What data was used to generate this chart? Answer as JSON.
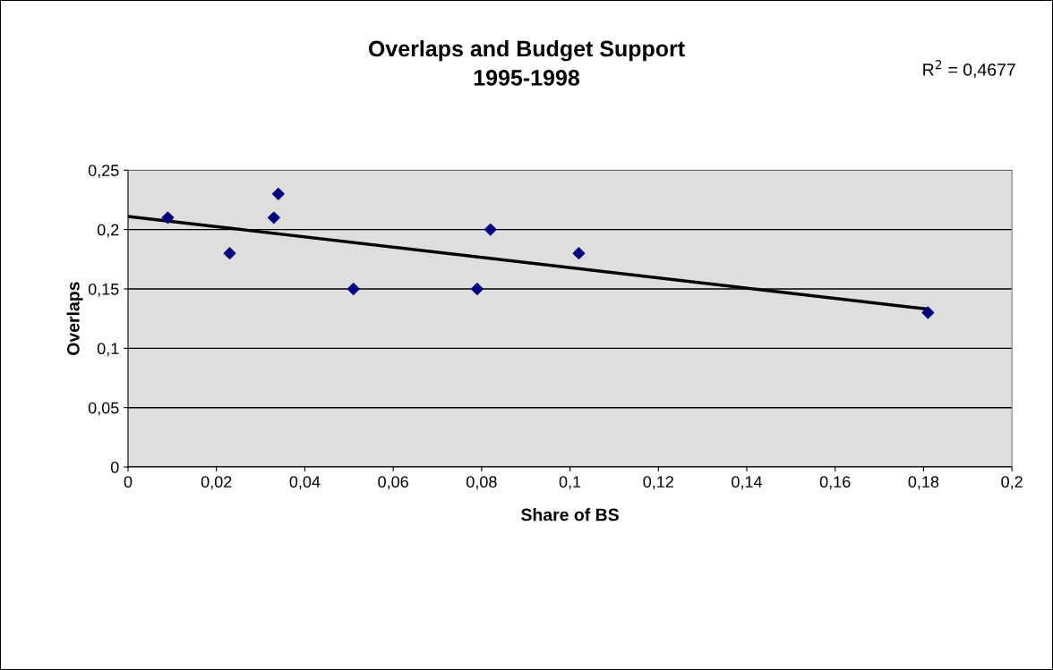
{
  "chart_data": {
    "type": "scatter",
    "title": "Overlaps and Budget Support\n1995-1998",
    "xlabel": "Share of BS",
    "ylabel": "Overlaps",
    "annotations": [
      "R$^{2}$ = 0,4677"
    ],
    "series": [
      {
        "color": "#000080",
        "marker": "diamond",
        "x": [
          0.009,
          0.023,
          0.033,
          0.034,
          0.051,
          0.079,
          0.082,
          0.102,
          0.181
        ],
        "values": [
          0.21,
          0.18,
          0.21,
          0.23,
          0.15,
          0.15,
          0.2,
          0.18,
          0.13
        ]
      },
      {
        "type": "line",
        "color": "#000000",
        "marker": "none",
        "line_style": "solid",
        "x": [
          0,
          0.181
        ],
        "values": [
          0.211,
          0.133
        ]
      }
    ],
    "xlim": [
      0,
      0.2
    ],
    "ylim": [
      0,
      0.25
    ],
    "xticks": [
      0,
      {
        "value": 0.02,
        "label": "0,02"
      },
      {
        "value": 0.04,
        "label": "0,04"
      },
      {
        "value": 0.06,
        "label": "0,06"
      },
      {
        "value": 0.08,
        "label": "0,08"
      },
      {
        "value": 0.1,
        "label": "0,1"
      },
      {
        "value": 0.12,
        "label": "0,12"
      },
      {
        "value": 0.14,
        "label": "0,14"
      },
      {
        "value": 0.16,
        "label": "0,16"
      },
      {
        "value": 0.18,
        "label": "0,18"
      },
      {
        "value": 0.2,
        "label": "0,2"
      }
    ],
    "yticks": [
      0,
      {
        "value": 0.05,
        "label": "0,05"
      },
      {
        "value": 0.1,
        "label": "0,1"
      },
      {
        "value": 0.15,
        "label": "0,15"
      },
      {
        "value": 0.2,
        "label": "0,2"
      },
      {
        "value": 0.25,
        "label": "0,25"
      }
    ],
    "grid": "y"
  }
}
